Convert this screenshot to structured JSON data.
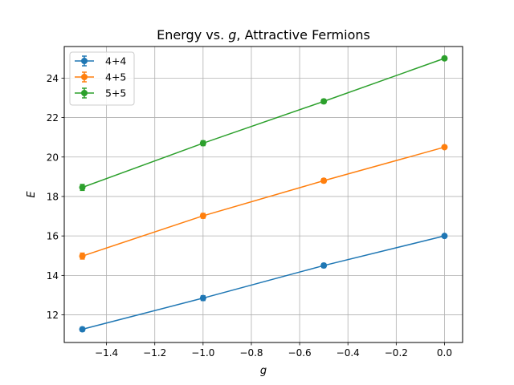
{
  "chart_data": {
    "type": "line",
    "title_prefix": "Energy vs. ",
    "title_var": "g",
    "title_suffix": ", Attractive Fermions",
    "xlabel": "g",
    "ylabel": "E",
    "xlim": [
      -1.575,
      0.075
    ],
    "ylim": [
      10.6,
      25.6
    ],
    "xticks": [
      -1.4,
      -1.2,
      -1.0,
      -0.8,
      -0.6,
      -0.4,
      -0.2,
      0.0
    ],
    "xtick_labels": [
      "−1.4",
      "−1.2",
      "−1.0",
      "−0.8",
      "−0.6",
      "−0.4",
      "−0.2",
      "0.0"
    ],
    "yticks": [
      12,
      14,
      16,
      18,
      20,
      22,
      24
    ],
    "ytick_labels": [
      "12",
      "14",
      "16",
      "18",
      "20",
      "22",
      "24"
    ],
    "grid": true,
    "legend_position": "top-left",
    "x": [
      -1.5,
      -1.0,
      -0.5,
      0.0
    ],
    "series": [
      {
        "name": "4+4",
        "color": "#1f77b4",
        "values": [
          11.27,
          12.85,
          14.5,
          16.0
        ],
        "errors": [
          0.1,
          0.12,
          0.1,
          0.05
        ]
      },
      {
        "name": "4+5",
        "color": "#ff7f0e",
        "values": [
          14.98,
          17.02,
          18.8,
          20.5
        ],
        "errors": [
          0.15,
          0.12,
          0.1,
          0.05
        ]
      },
      {
        "name": "5+5",
        "color": "#2ca02c",
        "values": [
          18.46,
          20.7,
          22.82,
          25.0
        ],
        "errors": [
          0.15,
          0.12,
          0.1,
          0.05
        ]
      }
    ]
  }
}
